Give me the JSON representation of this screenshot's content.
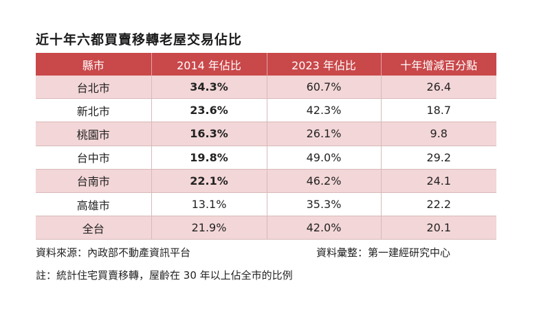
{
  "title": "近十年六都買賣移轉老屋交易佔比",
  "table": {
    "headers": [
      "縣市",
      "2014 年佔比",
      "2023 年佔比",
      "十年增減百分點"
    ],
    "rows": [
      [
        "台北市",
        "34.3%",
        "60.7%",
        "26.4"
      ],
      [
        "新北市",
        "23.6%",
        "42.3%",
        "18.7"
      ],
      [
        "桃園市",
        "16.3%",
        "26.1%",
        "9.8"
      ],
      [
        "台中市",
        "19.8%",
        "49.0%",
        "29.2"
      ],
      [
        "台南市",
        "22.1%",
        "46.2%",
        "24.1"
      ],
      [
        "高雄市",
        "13.1%",
        "35.3%",
        "22.2"
      ],
      [
        "全台",
        "21.9%",
        "42.0%",
        "20.1"
      ]
    ]
  },
  "footer": {
    "source": "資料來源：內政部不動產資訊平台",
    "compiled": "資料彙整：第一建經研究中心",
    "note": "註：統計住宅買賣移轉，屋齡在 30 年以上佔全市的比例"
  },
  "colors": {
    "header_bg": "#c9484a",
    "row_alt_bg": "#f3d6d7",
    "header_text": "#ffffff"
  }
}
